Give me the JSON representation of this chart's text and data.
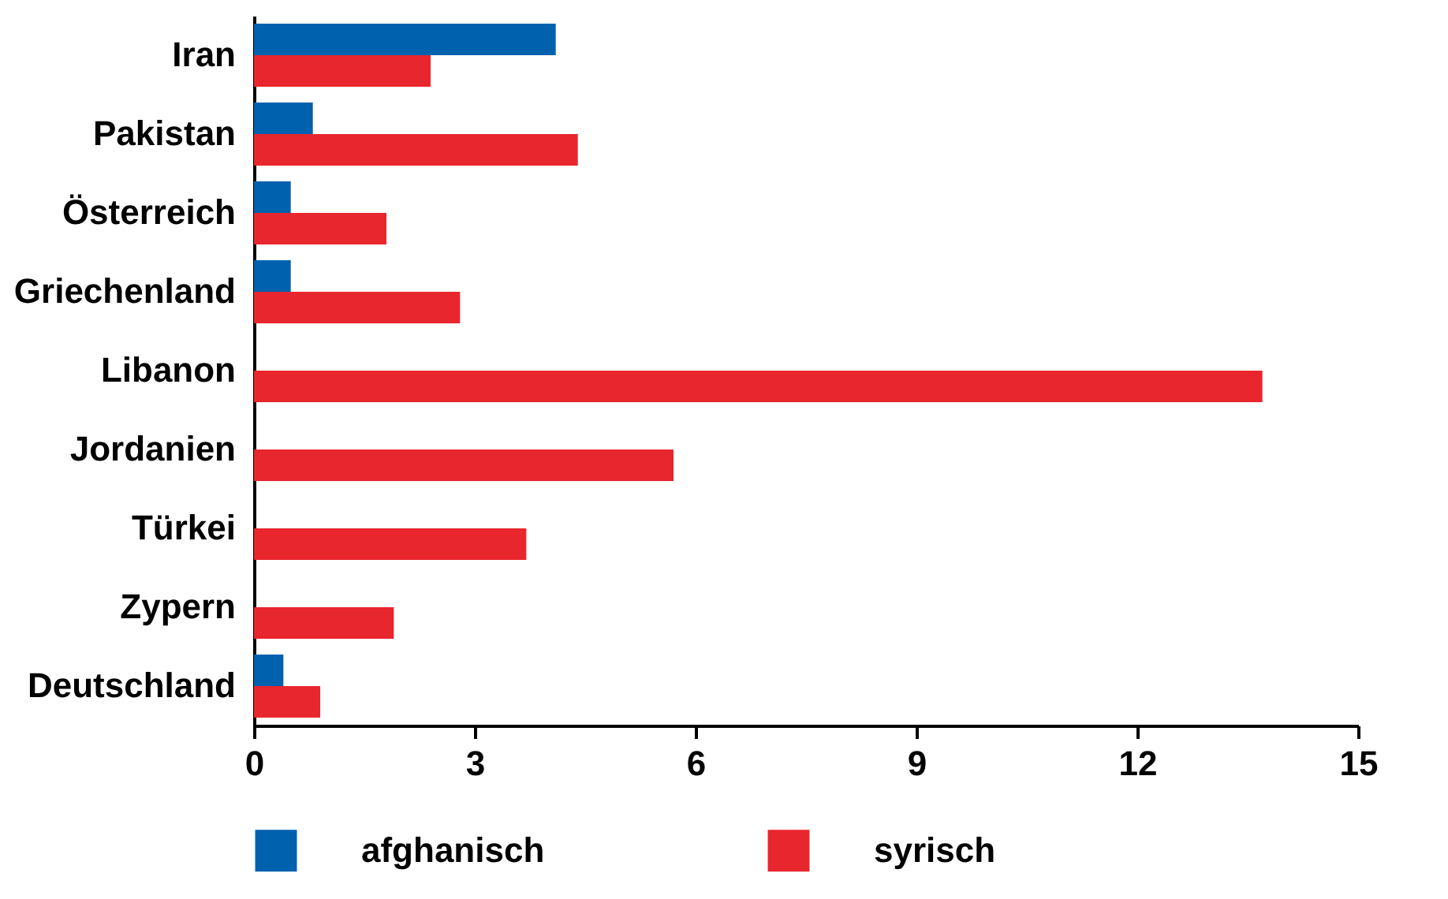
{
  "chart_data": {
    "type": "bar",
    "orientation": "horizontal",
    "categories": [
      "Iran",
      "Pakistan",
      "Österreich",
      "Griechenland",
      "Libanon",
      "Jordanien",
      "Türkei",
      "Zypern",
      "Deutschland"
    ],
    "series": [
      {
        "name": "afghanisch",
        "color": "#0061ae",
        "values": [
          4.1,
          0.8,
          0.5,
          0.5,
          0,
          0,
          0,
          0,
          0.4
        ]
      },
      {
        "name": "syrisch",
        "color": "#e8262e",
        "values": [
          2.4,
          4.4,
          1.8,
          2.8,
          13.7,
          5.7,
          3.7,
          1.9,
          0.9
        ]
      }
    ],
    "xlim": [
      0,
      15
    ],
    "xticks": [
      0,
      3,
      6,
      9,
      12,
      15
    ],
    "legend": "bottom"
  }
}
